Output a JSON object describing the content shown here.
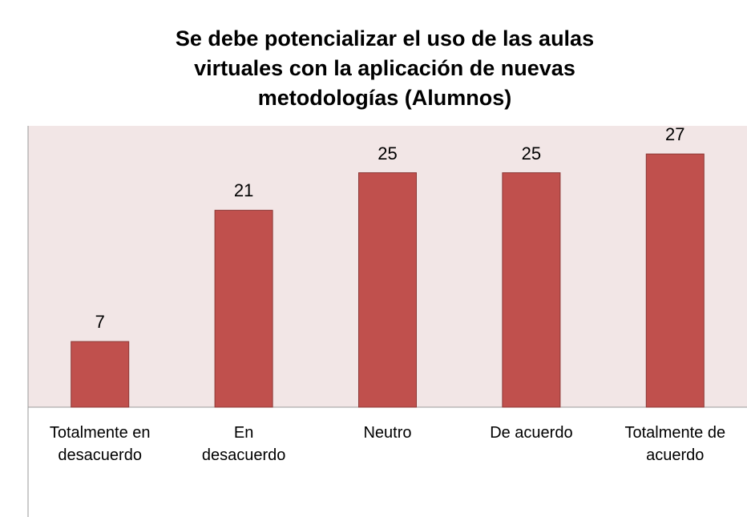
{
  "chart_data": {
    "type": "bar",
    "title": "Se debe potencializar el uso de las aulas\nvirtuales con la aplicación de nuevas\nmetodologías (Alumnos)",
    "categories": [
      "Totalmente en\ndesacuerdo",
      "En\ndesacuerdo",
      "Neutro",
      "De acuerdo",
      "Totalmente de\nacuerdo"
    ],
    "values": [
      7,
      21,
      25,
      25,
      27
    ],
    "color": "#c0504d",
    "ylim": [
      0,
      30
    ]
  }
}
